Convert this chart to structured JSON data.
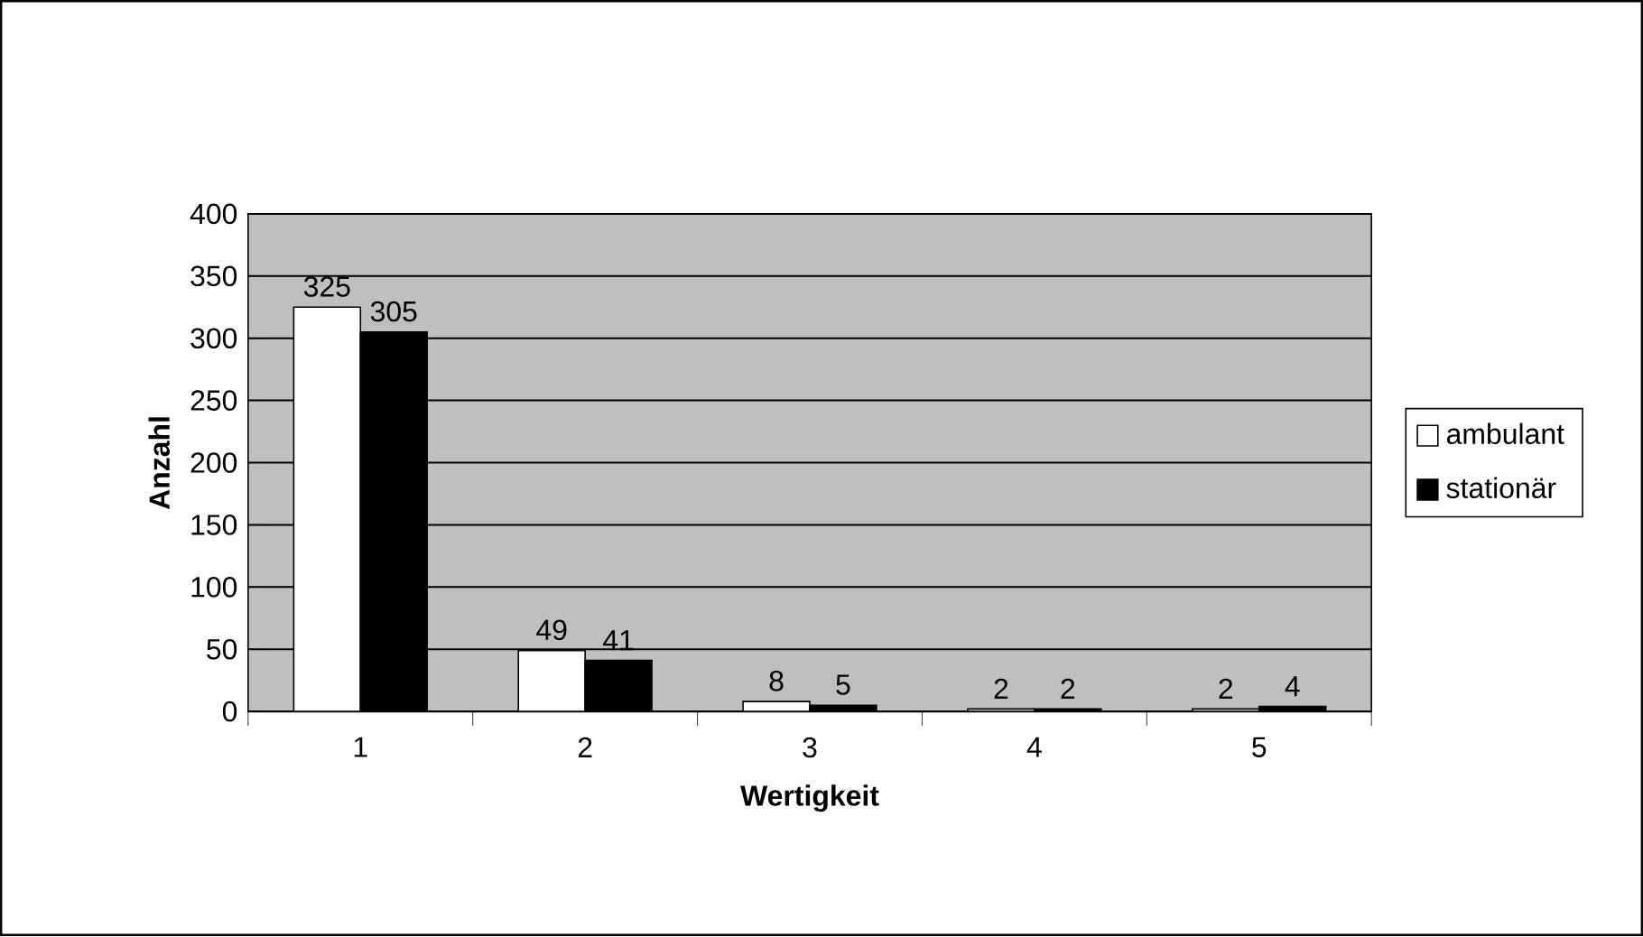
{
  "chart_data": {
    "type": "bar",
    "xlabel": "Wertigkeit",
    "ylabel": "Anzahl",
    "categories": [
      "1",
      "2",
      "3",
      "4",
      "5"
    ],
    "series": [
      {
        "name": "ambulant",
        "color": "#ffffff",
        "values": [
          325,
          49,
          8,
          2,
          2
        ]
      },
      {
        "name": "stationär",
        "color": "#000000",
        "values": [
          305,
          41,
          5,
          2,
          4
        ]
      }
    ],
    "ylim": [
      0,
      400
    ],
    "yticks": [
      0,
      50,
      100,
      150,
      200,
      250,
      300,
      350,
      400
    ],
    "grid": "y",
    "legend": "right",
    "data_labels": true
  }
}
